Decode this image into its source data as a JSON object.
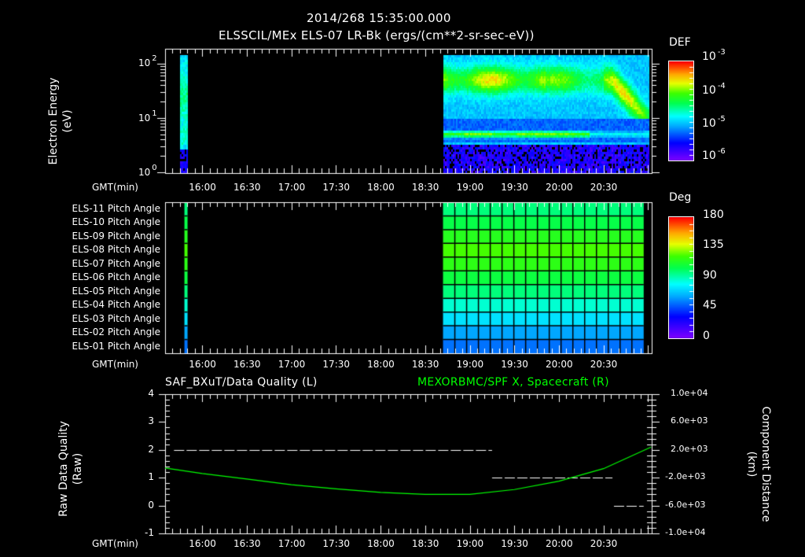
{
  "header": {
    "timestamp": "2014/268 15:35:00.000",
    "title": "ELSSCIL/MEx ELS-07 LR-Bk  (ergs/(cm**2-sr-sec-eV))"
  },
  "panel1": {
    "ylabel_line1": "Electron Energy",
    "ylabel_line2": "(eV)",
    "yticks": [
      {
        "base": "10",
        "exp": "2"
      },
      {
        "base": "10",
        "exp": "1"
      },
      {
        "base": "10",
        "exp": "0"
      }
    ],
    "xaxis_label": "GMT(min)",
    "colorbar": {
      "title": "DEF",
      "labels": [
        {
          "base": "10",
          "exp": "-3"
        },
        {
          "base": "10",
          "exp": "-4"
        },
        {
          "base": "10",
          "exp": "-5"
        },
        {
          "base": "10",
          "exp": "-6"
        }
      ]
    }
  },
  "panel2": {
    "row_labels": [
      "ELS-11 Pitch Angle",
      "ELS-10 Pitch Angle",
      "ELS-09 Pitch Angle",
      "ELS-08 Pitch Angle",
      "ELS-07 Pitch Angle",
      "ELS-06 Pitch Angle",
      "ELS-05 Pitch Angle",
      "ELS-04 Pitch Angle",
      "ELS-03 Pitch Angle",
      "ELS-02 Pitch Angle",
      "ELS-01 Pitch Angle"
    ],
    "xaxis_label": "GMT(min)",
    "colorbar": {
      "title": "Deg",
      "labels": [
        "180",
        "135",
        "90",
        "45",
        "0"
      ]
    }
  },
  "panel3": {
    "left_title": "SAF_BXuT/Data Quality (L)",
    "right_title": "MEXORBMC/SPF X, Spacecraft (R)",
    "right_title_color": "#00ff00",
    "ylabel_left_line1": "Raw Data Quality",
    "ylabel_left_line2": "(Raw)",
    "ylabel_right_line1": "Component Distance",
    "ylabel_right_line2": "(km)",
    "left_yticks": [
      "4",
      "3",
      "2",
      "1",
      "0",
      "-1"
    ],
    "right_yticks": [
      "1.0e+04",
      "6.0e+03",
      "2.0e+03",
      "-2.0e+03",
      "-6.0e+03",
      "-1.0e+04"
    ],
    "xaxis_label": "GMT(min)"
  },
  "time_axis": {
    "ticks": [
      "16:00",
      "16:30",
      "17:00",
      "17:30",
      "18:00",
      "18:30",
      "19:00",
      "19:30",
      "20:00",
      "20:30"
    ]
  },
  "chart_data": [
    {
      "type": "heatmap",
      "title": "ELSSCIL/MEx ELS-07 LR-Bk (ergs/(cm**2-sr-sec-eV))",
      "xlabel": "GMT(min)",
      "ylabel": "Electron Energy (eV)",
      "yscale": "log",
      "ylim": [
        1,
        150
      ],
      "xlim": [
        "15:35",
        "21:02"
      ],
      "color_label": "DEF",
      "color_range": [
        1e-06,
        0.001
      ],
      "data_intervals": [
        {
          "start": "15:45",
          "end": "15:50"
        },
        {
          "start": "18:42",
          "end": "21:00"
        }
      ],
      "features": [
        {
          "desc": "peak flux band",
          "energy_eV": [
            30,
            80
          ],
          "level": "~2e-4 (yellow-green)"
        },
        {
          "desc": "secondary band",
          "energy_eV": [
            4,
            7
          ],
          "level": "~2e-5 (cyan)"
        },
        {
          "desc": "low-energy noise",
          "energy_eV": [
            1,
            3
          ],
          "level": "~1e-6 (violet)"
        }
      ]
    },
    {
      "type": "heatmap",
      "title": "Pitch Angle",
      "xlabel": "GMT(min)",
      "categories": [
        "ELS-11",
        "ELS-10",
        "ELS-09",
        "ELS-08",
        "ELS-07",
        "ELS-06",
        "ELS-05",
        "ELS-04",
        "ELS-03",
        "ELS-02",
        "ELS-01"
      ],
      "color_label": "Deg",
      "color_range": [
        0,
        180
      ],
      "values_deg": [
        100,
        108,
        118,
        126,
        120,
        110,
        100,
        88,
        75,
        62,
        52
      ],
      "data_intervals": [
        {
          "start": "15:48",
          "end": "15:50"
        },
        {
          "start": "18:42",
          "end": "20:57"
        }
      ]
    },
    {
      "type": "line",
      "title": "SAF_BXuT/Data Quality (L) / MEXORBMC/SPF X, Spacecraft (R)",
      "xlabel": "GMT(min)",
      "ylabel": "Raw Data Quality (Raw)",
      "ylabel_right": "Component Distance (km)",
      "ylim": [
        -1,
        4
      ],
      "ylim_right": [
        -10000,
        10000
      ],
      "series": [
        {
          "name": "Data Quality (L)",
          "color": "#ffffff",
          "style": "dashed",
          "points": [
            {
              "start": "15:41",
              "end": "19:15",
              "value": 2
            },
            {
              "start": "19:15",
              "end": "20:36",
              "value": 1
            },
            {
              "start": "20:37",
              "end": "20:57",
              "value": 0
            }
          ]
        },
        {
          "name": "SPF X, Spacecraft (R)",
          "color": "#00ff00",
          "x": [
            "15:35",
            "16:00",
            "16:30",
            "17:00",
            "17:30",
            "18:00",
            "18:30",
            "19:00",
            "19:30",
            "20:00",
            "20:30",
            "21:02"
          ],
          "values_km": [
            -600,
            -1400,
            -2200,
            -3000,
            -3600,
            -4100,
            -4400,
            -4400,
            -3700,
            -2500,
            -700,
            2400
          ]
        }
      ]
    }
  ]
}
